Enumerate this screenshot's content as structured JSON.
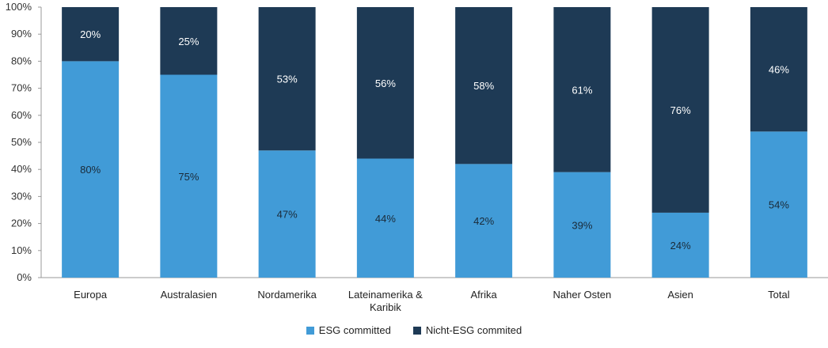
{
  "chart_data": {
    "type": "bar",
    "stacked": true,
    "categories": [
      "Europa",
      "Australasien",
      "Nordamerika",
      "Lateinamerika & Karibik",
      "Afrika",
      "Naher Osten",
      "Asien",
      "Total"
    ],
    "series": [
      {
        "name": "ESG committed",
        "values": [
          80,
          75,
          47,
          44,
          42,
          39,
          24,
          54
        ],
        "color": "#419bd7"
      },
      {
        "name": "Nicht-ESG commited",
        "values": [
          20,
          25,
          53,
          56,
          58,
          61,
          76,
          46
        ],
        "color": "#1e3a55"
      }
    ],
    "yticks": [
      "0%",
      "10%",
      "20%",
      "30%",
      "40%",
      "50%",
      "60%",
      "70%",
      "80%",
      "90%",
      "100%"
    ],
    "ylim": [
      0,
      100
    ],
    "legend_position": "bottom",
    "grid": false
  }
}
